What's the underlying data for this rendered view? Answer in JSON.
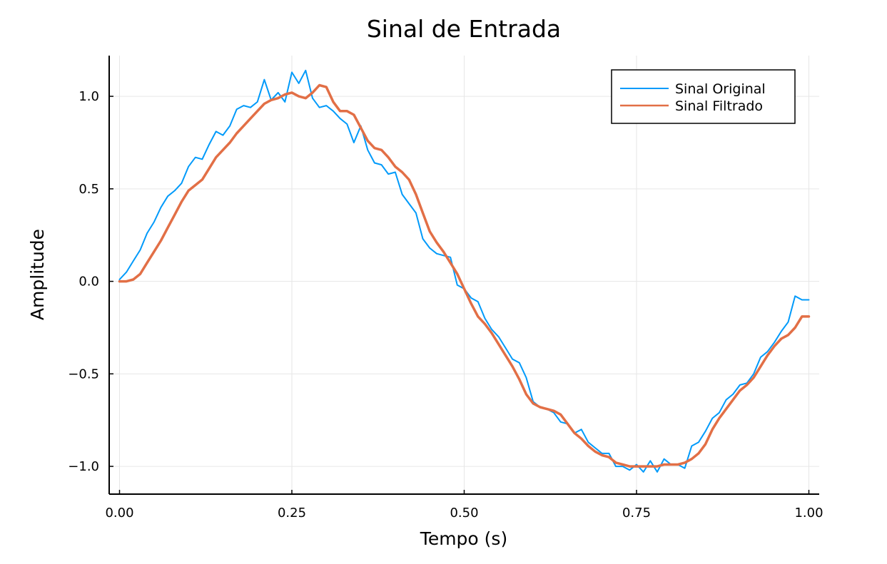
{
  "chart_data": {
    "type": "line",
    "title": "Sinal de Entrada",
    "xlabel": "Tempo (s)",
    "ylabel": "Amplitude",
    "xlim": [
      -0.015,
      1.015
    ],
    "ylim": [
      -1.15,
      1.22
    ],
    "xticks": [
      0.0,
      0.25,
      0.5,
      0.75,
      1.0
    ],
    "xtick_labels": [
      "0.00",
      "0.25",
      "0.50",
      "0.75",
      "1.00"
    ],
    "yticks": [
      -1.0,
      -0.5,
      0.0,
      0.5,
      1.0
    ],
    "ytick_labels": [
      "−1.0",
      "−0.5",
      "0.0",
      "0.5",
      "1.0"
    ],
    "grid": true,
    "legend_position": "top-right",
    "series": [
      {
        "name": "Sinal Original",
        "color": "#009AFA",
        "x": [
          0.0,
          0.01,
          0.02,
          0.03,
          0.04,
          0.05,
          0.06,
          0.07,
          0.08,
          0.09,
          0.1,
          0.11,
          0.12,
          0.13,
          0.14,
          0.15,
          0.16,
          0.17,
          0.18,
          0.19,
          0.2,
          0.21,
          0.22,
          0.23,
          0.24,
          0.25,
          0.26,
          0.27,
          0.28,
          0.29,
          0.3,
          0.31,
          0.32,
          0.33,
          0.34,
          0.35,
          0.36,
          0.37,
          0.38,
          0.39,
          0.4,
          0.41,
          0.42,
          0.43,
          0.44,
          0.45,
          0.46,
          0.47,
          0.48,
          0.49,
          0.5,
          0.51,
          0.52,
          0.53,
          0.54,
          0.55,
          0.56,
          0.57,
          0.58,
          0.59,
          0.6,
          0.61,
          0.62,
          0.63,
          0.64,
          0.65,
          0.66,
          0.67,
          0.68,
          0.69,
          0.7,
          0.71,
          0.72,
          0.73,
          0.74,
          0.75,
          0.76,
          0.77,
          0.78,
          0.79,
          0.8,
          0.81,
          0.82,
          0.83,
          0.84,
          0.85,
          0.86,
          0.87,
          0.88,
          0.89,
          0.9,
          0.91,
          0.92,
          0.93,
          0.94,
          0.95,
          0.96,
          0.97,
          0.98,
          0.99,
          1.0
        ],
        "y": [
          0.01,
          0.05,
          0.11,
          0.17,
          0.26,
          0.32,
          0.4,
          0.46,
          0.49,
          0.53,
          0.62,
          0.67,
          0.66,
          0.74,
          0.81,
          0.79,
          0.84,
          0.93,
          0.95,
          0.94,
          0.97,
          1.09,
          0.98,
          1.02,
          0.97,
          1.13,
          1.07,
          1.14,
          0.99,
          0.94,
          0.95,
          0.92,
          0.88,
          0.85,
          0.75,
          0.84,
          0.71,
          0.64,
          0.63,
          0.58,
          0.59,
          0.47,
          0.42,
          0.37,
          0.23,
          0.18,
          0.15,
          0.14,
          0.13,
          -0.02,
          -0.04,
          -0.09,
          -0.11,
          -0.2,
          -0.26,
          -0.3,
          -0.36,
          -0.42,
          -0.44,
          -0.52,
          -0.65,
          -0.68,
          -0.69,
          -0.71,
          -0.76,
          -0.77,
          -0.82,
          -0.8,
          -0.87,
          -0.9,
          -0.93,
          -0.93,
          -1.0,
          -1.0,
          -1.02,
          -0.99,
          -1.03,
          -0.97,
          -1.03,
          -0.96,
          -0.99,
          -0.99,
          -1.01,
          -0.89,
          -0.87,
          -0.81,
          -0.74,
          -0.71,
          -0.64,
          -0.61,
          -0.56,
          -0.55,
          -0.5,
          -0.41,
          -0.38,
          -0.33,
          -0.27,
          -0.22,
          -0.08,
          -0.1,
          -0.1
        ]
      },
      {
        "name": "Sinal Filtrado",
        "color": "#E26F46",
        "x": [
          0.0,
          0.01,
          0.02,
          0.03,
          0.04,
          0.05,
          0.06,
          0.07,
          0.08,
          0.09,
          0.1,
          0.11,
          0.12,
          0.13,
          0.14,
          0.15,
          0.16,
          0.17,
          0.18,
          0.19,
          0.2,
          0.21,
          0.22,
          0.23,
          0.24,
          0.25,
          0.26,
          0.27,
          0.28,
          0.29,
          0.3,
          0.31,
          0.32,
          0.33,
          0.34,
          0.35,
          0.36,
          0.37,
          0.38,
          0.39,
          0.4,
          0.41,
          0.42,
          0.43,
          0.44,
          0.45,
          0.46,
          0.47,
          0.48,
          0.49,
          0.5,
          0.51,
          0.52,
          0.53,
          0.54,
          0.55,
          0.56,
          0.57,
          0.58,
          0.59,
          0.6,
          0.61,
          0.62,
          0.63,
          0.64,
          0.65,
          0.66,
          0.67,
          0.68,
          0.69,
          0.7,
          0.71,
          0.72,
          0.73,
          0.74,
          0.75,
          0.76,
          0.77,
          0.78,
          0.79,
          0.8,
          0.81,
          0.82,
          0.83,
          0.84,
          0.85,
          0.86,
          0.87,
          0.88,
          0.89,
          0.9,
          0.91,
          0.92,
          0.93,
          0.94,
          0.95,
          0.96,
          0.97,
          0.98,
          0.99,
          1.0
        ],
        "y": [
          0.0,
          0.0,
          0.01,
          0.04,
          0.1,
          0.16,
          0.22,
          0.29,
          0.36,
          0.43,
          0.49,
          0.52,
          0.55,
          0.61,
          0.67,
          0.71,
          0.75,
          0.8,
          0.84,
          0.88,
          0.92,
          0.96,
          0.98,
          0.99,
          1.01,
          1.02,
          1.0,
          0.99,
          1.02,
          1.06,
          1.05,
          0.97,
          0.92,
          0.92,
          0.9,
          0.83,
          0.76,
          0.72,
          0.71,
          0.67,
          0.62,
          0.59,
          0.55,
          0.47,
          0.37,
          0.27,
          0.21,
          0.16,
          0.1,
          0.04,
          -0.04,
          -0.12,
          -0.19,
          -0.23,
          -0.28,
          -0.34,
          -0.4,
          -0.46,
          -0.53,
          -0.61,
          -0.66,
          -0.68,
          -0.69,
          -0.7,
          -0.72,
          -0.77,
          -0.82,
          -0.85,
          -0.89,
          -0.92,
          -0.94,
          -0.95,
          -0.98,
          -0.99,
          -1.0,
          -1.0,
          -1.0,
          -1.0,
          -1.0,
          -0.99,
          -0.99,
          -0.99,
          -0.98,
          -0.96,
          -0.93,
          -0.88,
          -0.8,
          -0.74,
          -0.69,
          -0.64,
          -0.59,
          -0.56,
          -0.52,
          -0.46,
          -0.4,
          -0.35,
          -0.31,
          -0.29,
          -0.25,
          -0.19,
          -0.19
        ]
      }
    ]
  }
}
